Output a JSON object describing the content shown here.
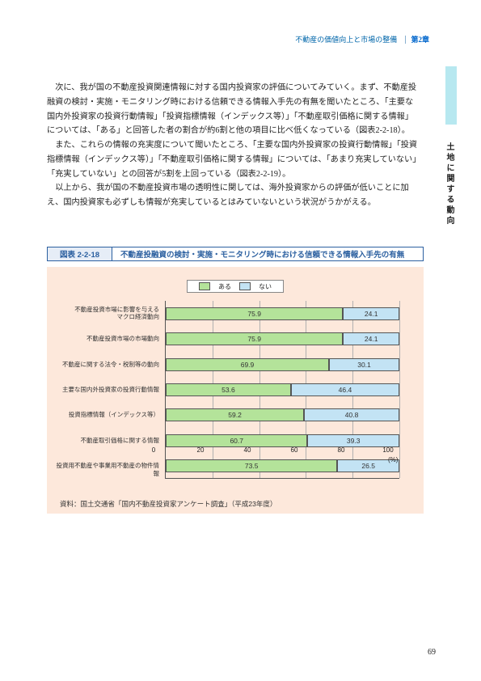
{
  "header": {
    "section": "不動産の価値向上と市場の整備",
    "chapter": "第2章"
  },
  "sideLabel": "土地に関する動向",
  "paragraphs": [
    "次に、我が国の不動産投資関連情報に対する国内投資家の評価についてみていく。まず、不動産投融資の検討・実施・モニタリング時における信頼できる情報入手先の有無を聞いたところ、「主要な国内外投資家の投資行動情報」「投資指標情報（インデックス等）」「不動産取引価格に関する情報」については、「ある」と回答した者の割合が約6割と他の項目に比べ低くなっている（図表2-2-18）。",
    "また、これらの情報の充実度について聞いたところ、「主要な国内外投資家の投資行動情報」「投資指標情報（インデックス等）」「不動産取引価格に関する情報」については、「あまり充実していない」「充実していない」との回答が5割を上回っている（図表2-2-19）。",
    "以上から、我が国の不動産投資市場の透明性に関しては、海外投資家からの評価が低いことに加え、国内投資家も必ずしも情報が充実しているとはみていないという状況がうかがえる。"
  ],
  "figure": {
    "number": "図表 2-2-18",
    "title": "不動産投融資の検討・実施・モニタリング時における信頼できる情報入手先の有無",
    "legend": {
      "yes": "ある",
      "no": "ない"
    },
    "colors": {
      "yes": "#b4e39a",
      "no": "#c3e3f4"
    },
    "xmax": 100,
    "xtick_step": 20,
    "xunit": "(%)",
    "rows": [
      {
        "label": "不動産投資市場に影響を与える\nマクロ経済動向",
        "yes": 75.9,
        "no": 24.1
      },
      {
        "label": "不動産投資市場の市場動向",
        "yes": 75.9,
        "no": 24.1
      },
      {
        "label": "不動産に関する法令・税制等の動向",
        "yes": 69.9,
        "no": 30.1
      },
      {
        "label": "主要な国内外投資家の投資行動情報",
        "yes": 53.6,
        "no": 46.4
      },
      {
        "label": "投資指標情報（インデックス等）",
        "yes": 59.2,
        "no": 40.8
      },
      {
        "label": "不動産取引価格に関する情報",
        "yes": 60.7,
        "no": 39.3
      },
      {
        "label": "投資用不動産や事業用不動産の物件情報",
        "yes": 73.5,
        "no": 26.5
      }
    ],
    "source": "資料：国土交通省「国内不動産投資家アンケート調査」（平成23年度）"
  },
  "pageNumber": "69"
}
